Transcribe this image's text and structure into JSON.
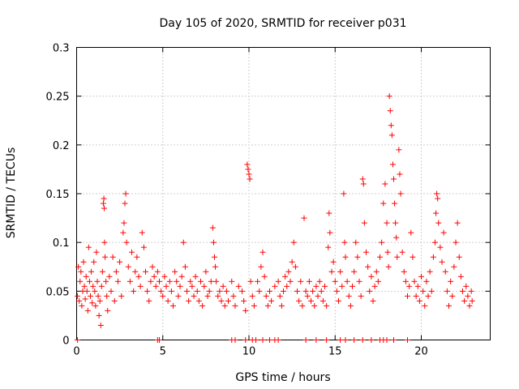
{
  "chart_data": {
    "type": "scatter",
    "title": "Day 105 of 2020, SRMTID for receiver p031",
    "xlabel": "GPS time / hours",
    "ylabel": "SRMTID / TECUs",
    "xlim": [
      0,
      24
    ],
    "ylim": [
      0,
      0.3
    ],
    "x_ticks": [
      0,
      5,
      10,
      15,
      20
    ],
    "x_tick_labels": [
      "0",
      "5",
      "10",
      "15",
      "20"
    ],
    "y_ticks": [
      0,
      0.05,
      0.1,
      0.15,
      0.2,
      0.25,
      0.3
    ],
    "y_tick_labels": [
      "0",
      "0.05",
      "0.1",
      "0.15",
      "0.2",
      "0.25",
      "0.3"
    ],
    "grid": true,
    "marker": "+",
    "series": [
      {
        "name": "SRMTID",
        "color": "#ff0000",
        "points": [
          [
            0.05,
            0.045
          ],
          [
            0.1,
            0.075
          ],
          [
            0.15,
            0.04
          ],
          [
            0.2,
            0.06
          ],
          [
            0.25,
            0.07
          ],
          [
            0.3,
            0.035
          ],
          [
            0.35,
            0.05
          ],
          [
            0.4,
            0.08
          ],
          [
            0.45,
            0.055
          ],
          [
            0.5,
            0.042
          ],
          [
            0.55,
            0.065
          ],
          [
            0.6,
            0.05
          ],
          [
            0.65,
            0.03
          ],
          [
            0.7,
            0.095
          ],
          [
            0.75,
            0.06
          ],
          [
            0.8,
            0.045
          ],
          [
            0.85,
            0.07
          ],
          [
            0.9,
            0.038
          ],
          [
            0.95,
            0.055
          ],
          [
            1.0,
            0.08
          ],
          [
            1.05,
            0.05
          ],
          [
            1.1,
            0.035
          ],
          [
            1.15,
            0.09
          ],
          [
            1.2,
            0.06
          ],
          [
            1.25,
            0.045
          ],
          [
            1.3,
            0.025
          ],
          [
            1.35,
            0.04
          ],
          [
            1.4,
            0.015
          ],
          [
            1.45,
            0.055
          ],
          [
            1.5,
            0.07
          ],
          [
            1.55,
            0.14
          ],
          [
            1.58,
            0.145
          ],
          [
            1.6,
            0.135
          ],
          [
            1.62,
            0.1
          ],
          [
            1.65,
            0.085
          ],
          [
            1.7,
            0.06
          ],
          [
            1.75,
            0.045
          ],
          [
            1.8,
            0.03
          ],
          [
            1.9,
            0.065
          ],
          [
            2.0,
            0.05
          ],
          [
            2.1,
            0.085
          ],
          [
            2.2,
            0.04
          ],
          [
            2.3,
            0.07
          ],
          [
            2.4,
            0.06
          ],
          [
            2.5,
            0.08
          ],
          [
            2.6,
            0.045
          ],
          [
            2.7,
            0.11
          ],
          [
            2.75,
            0.12
          ],
          [
            2.8,
            0.14
          ],
          [
            2.85,
            0.15
          ],
          [
            2.9,
            0.1
          ],
          [
            3.0,
            0.075
          ],
          [
            3.1,
            0.06
          ],
          [
            3.2,
            0.09
          ],
          [
            3.3,
            0.05
          ],
          [
            3.4,
            0.07
          ],
          [
            3.5,
            0.085
          ],
          [
            3.6,
            0.065
          ],
          [
            3.7,
            0.055
          ],
          [
            3.8,
            0.11
          ],
          [
            3.9,
            0.095
          ],
          [
            4.0,
            0.07
          ],
          [
            4.1,
            0.05
          ],
          [
            4.2,
            0.04
          ],
          [
            4.3,
            0.06
          ],
          [
            4.4,
            0.075
          ],
          [
            4.5,
            0.065
          ],
          [
            4.6,
            0.055
          ],
          [
            4.7,
            0.07
          ],
          [
            4.8,
            0.06
          ],
          [
            4.9,
            0.05
          ],
          [
            5.0,
            0.045
          ],
          [
            5.1,
            0.065
          ],
          [
            5.2,
            0.055
          ],
          [
            5.3,
            0.04
          ],
          [
            5.4,
            0.06
          ],
          [
            5.5,
            0.05
          ],
          [
            5.6,
            0.035
          ],
          [
            5.7,
            0.07
          ],
          [
            5.8,
            0.06
          ],
          [
            5.9,
            0.045
          ],
          [
            6.0,
            0.055
          ],
          [
            6.1,
            0.065
          ],
          [
            6.2,
            0.1
          ],
          [
            6.3,
            0.075
          ],
          [
            6.4,
            0.05
          ],
          [
            6.5,
            0.04
          ],
          [
            6.6,
            0.06
          ],
          [
            6.7,
            0.055
          ],
          [
            6.8,
            0.045
          ],
          [
            6.9,
            0.065
          ],
          [
            7.0,
            0.05
          ],
          [
            7.1,
            0.04
          ],
          [
            7.2,
            0.06
          ],
          [
            7.3,
            0.035
          ],
          [
            7.4,
            0.055
          ],
          [
            7.5,
            0.07
          ],
          [
            7.6,
            0.045
          ],
          [
            7.7,
            0.05
          ],
          [
            7.8,
            0.06
          ],
          [
            7.9,
            0.115
          ],
          [
            7.95,
            0.1
          ],
          [
            8.0,
            0.085
          ],
          [
            8.05,
            0.075
          ],
          [
            8.1,
            0.06
          ],
          [
            8.2,
            0.045
          ],
          [
            8.3,
            0.05
          ],
          [
            8.4,
            0.04
          ],
          [
            8.5,
            0.055
          ],
          [
            8.6,
            0.035
          ],
          [
            8.7,
            0.05
          ],
          [
            8.8,
            0.04
          ],
          [
            9.0,
            0.06
          ],
          [
            9.1,
            0.045
          ],
          [
            9.2,
            0.035
          ],
          [
            9.4,
            0.055
          ],
          [
            9.6,
            0.05
          ],
          [
            9.7,
            0.04
          ],
          [
            9.8,
            0.03
          ],
          [
            9.9,
            0.18
          ],
          [
            9.95,
            0.175
          ],
          [
            10.0,
            0.17
          ],
          [
            10.05,
            0.165
          ],
          [
            10.1,
            0.06
          ],
          [
            10.2,
            0.045
          ],
          [
            10.3,
            0.035
          ],
          [
            10.5,
            0.06
          ],
          [
            10.6,
            0.05
          ],
          [
            10.7,
            0.075
          ],
          [
            10.8,
            0.09
          ],
          [
            10.9,
            0.065
          ],
          [
            11.0,
            0.045
          ],
          [
            11.1,
            0.035
          ],
          [
            11.2,
            0.05
          ],
          [
            11.3,
            0.04
          ],
          [
            11.5,
            0.055
          ],
          [
            11.7,
            0.06
          ],
          [
            11.8,
            0.045
          ],
          [
            11.9,
            0.035
          ],
          [
            12.0,
            0.05
          ],
          [
            12.1,
            0.065
          ],
          [
            12.2,
            0.055
          ],
          [
            12.3,
            0.07
          ],
          [
            12.4,
            0.06
          ],
          [
            12.5,
            0.08
          ],
          [
            12.6,
            0.1
          ],
          [
            12.7,
            0.075
          ],
          [
            12.8,
            0.05
          ],
          [
            12.9,
            0.04
          ],
          [
            13.0,
            0.06
          ],
          [
            13.1,
            0.035
          ],
          [
            13.2,
            0.125
          ],
          [
            13.3,
            0.05
          ],
          [
            13.4,
            0.045
          ],
          [
            13.5,
            0.06
          ],
          [
            13.6,
            0.04
          ],
          [
            13.7,
            0.05
          ],
          [
            13.8,
            0.035
          ],
          [
            13.9,
            0.055
          ],
          [
            14.0,
            0.045
          ],
          [
            14.1,
            0.06
          ],
          [
            14.2,
            0.05
          ],
          [
            14.3,
            0.04
          ],
          [
            14.4,
            0.055
          ],
          [
            14.5,
            0.035
          ],
          [
            14.6,
            0.095
          ],
          [
            14.65,
            0.13
          ],
          [
            14.7,
            0.11
          ],
          [
            14.8,
            0.07
          ],
          [
            14.9,
            0.08
          ],
          [
            15.0,
            0.06
          ],
          [
            15.1,
            0.05
          ],
          [
            15.2,
            0.04
          ],
          [
            15.3,
            0.07
          ],
          [
            15.4,
            0.055
          ],
          [
            15.5,
            0.15
          ],
          [
            15.55,
            0.1
          ],
          [
            15.6,
            0.085
          ],
          [
            15.7,
            0.06
          ],
          [
            15.8,
            0.045
          ],
          [
            15.9,
            0.035
          ],
          [
            16.0,
            0.055
          ],
          [
            16.1,
            0.07
          ],
          [
            16.2,
            0.1
          ],
          [
            16.3,
            0.085
          ],
          [
            16.4,
            0.06
          ],
          [
            16.5,
            0.045
          ],
          [
            16.6,
            0.165
          ],
          [
            16.65,
            0.16
          ],
          [
            16.7,
            0.12
          ],
          [
            16.8,
            0.09
          ],
          [
            16.9,
            0.075
          ],
          [
            17.0,
            0.05
          ],
          [
            17.1,
            0.065
          ],
          [
            17.2,
            0.04
          ],
          [
            17.3,
            0.055
          ],
          [
            17.4,
            0.07
          ],
          [
            17.5,
            0.06
          ],
          [
            17.6,
            0.085
          ],
          [
            17.7,
            0.1
          ],
          [
            17.8,
            0.14
          ],
          [
            17.9,
            0.16
          ],
          [
            18.0,
            0.12
          ],
          [
            18.05,
            0.09
          ],
          [
            18.1,
            0.075
          ],
          [
            18.15,
            0.25
          ],
          [
            18.2,
            0.235
          ],
          [
            18.25,
            0.22
          ],
          [
            18.3,
            0.21
          ],
          [
            18.35,
            0.18
          ],
          [
            18.4,
            0.165
          ],
          [
            18.45,
            0.14
          ],
          [
            18.5,
            0.12
          ],
          [
            18.55,
            0.105
          ],
          [
            18.6,
            0.085
          ],
          [
            18.7,
            0.195
          ],
          [
            18.75,
            0.17
          ],
          [
            18.8,
            0.15
          ],
          [
            18.9,
            0.09
          ],
          [
            19.0,
            0.07
          ],
          [
            19.1,
            0.06
          ],
          [
            19.2,
            0.045
          ],
          [
            19.3,
            0.055
          ],
          [
            19.4,
            0.11
          ],
          [
            19.5,
            0.085
          ],
          [
            19.6,
            0.06
          ],
          [
            19.7,
            0.045
          ],
          [
            19.8,
            0.055
          ],
          [
            19.9,
            0.04
          ],
          [
            20.0,
            0.065
          ],
          [
            20.1,
            0.05
          ],
          [
            20.2,
            0.035
          ],
          [
            20.3,
            0.06
          ],
          [
            20.4,
            0.045
          ],
          [
            20.5,
            0.07
          ],
          [
            20.6,
            0.05
          ],
          [
            20.7,
            0.085
          ],
          [
            20.8,
            0.1
          ],
          [
            20.85,
            0.13
          ],
          [
            20.9,
            0.15
          ],
          [
            20.95,
            0.145
          ],
          [
            21.0,
            0.12
          ],
          [
            21.1,
            0.095
          ],
          [
            21.2,
            0.08
          ],
          [
            21.3,
            0.11
          ],
          [
            21.4,
            0.07
          ],
          [
            21.5,
            0.05
          ],
          [
            21.6,
            0.035
          ],
          [
            21.7,
            0.06
          ],
          [
            21.8,
            0.045
          ],
          [
            21.9,
            0.075
          ],
          [
            22.0,
            0.1
          ],
          [
            22.1,
            0.12
          ],
          [
            22.2,
            0.085
          ],
          [
            22.3,
            0.065
          ],
          [
            22.4,
            0.05
          ],
          [
            22.5,
            0.04
          ],
          [
            22.6,
            0.055
          ],
          [
            22.7,
            0.045
          ],
          [
            22.8,
            0.035
          ],
          [
            22.9,
            0.05
          ],
          [
            22.95,
            0.04
          ]
        ]
      }
    ],
    "zero_points_x": [
      0.05,
      4.7,
      4.8,
      9.0,
      9.2,
      9.8,
      10.2,
      10.4,
      10.8,
      11.2,
      11.5,
      11.7,
      13.3,
      13.9,
      14.5,
      15.3,
      15.6,
      16.1,
      16.6,
      17.1,
      17.6,
      17.8,
      18.0,
      18.4,
      19.2
    ]
  }
}
